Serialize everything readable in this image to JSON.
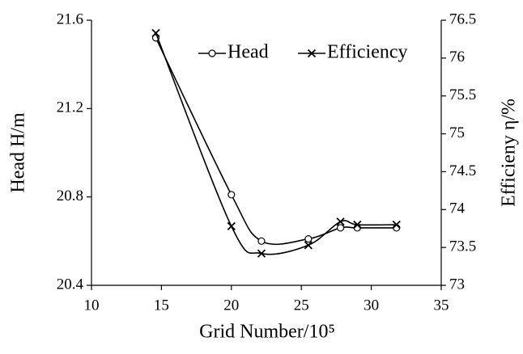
{
  "chart_data": {
    "type": "line",
    "x_label": "Grid Number/10⁵",
    "y_label": "Head H/m",
    "y2_label": "Efficieny η/%",
    "x": [
      14.6,
      20.0,
      22.15,
      25.5,
      27.8,
      29.0,
      31.8
    ],
    "series": [
      {
        "name": "Head",
        "color": "#000000",
        "marker": "circle",
        "values": [
          21.52,
          20.81,
          20.6,
          20.61,
          20.66,
          20.66,
          20.66
        ]
      },
      {
        "name": "Efficiency",
        "color": "#000000",
        "marker": "x",
        "axis": "y2",
        "values": [
          76.33,
          73.78,
          73.42,
          73.53,
          73.84,
          73.8,
          73.8
        ]
      }
    ],
    "xlim": [
      10,
      35
    ],
    "xticks": [
      10,
      15,
      20,
      25,
      30,
      35
    ],
    "ylim": [
      20.4,
      21.6
    ],
    "yticks": [
      20.4,
      20.8,
      21.2,
      21.6
    ],
    "y2lim": [
      73,
      76.5
    ],
    "y2ticks": [
      73,
      73.5,
      74,
      74.5,
      75,
      75.5,
      76,
      76.5
    ],
    "grid": false,
    "smooth": true,
    "legend": "top-right"
  }
}
